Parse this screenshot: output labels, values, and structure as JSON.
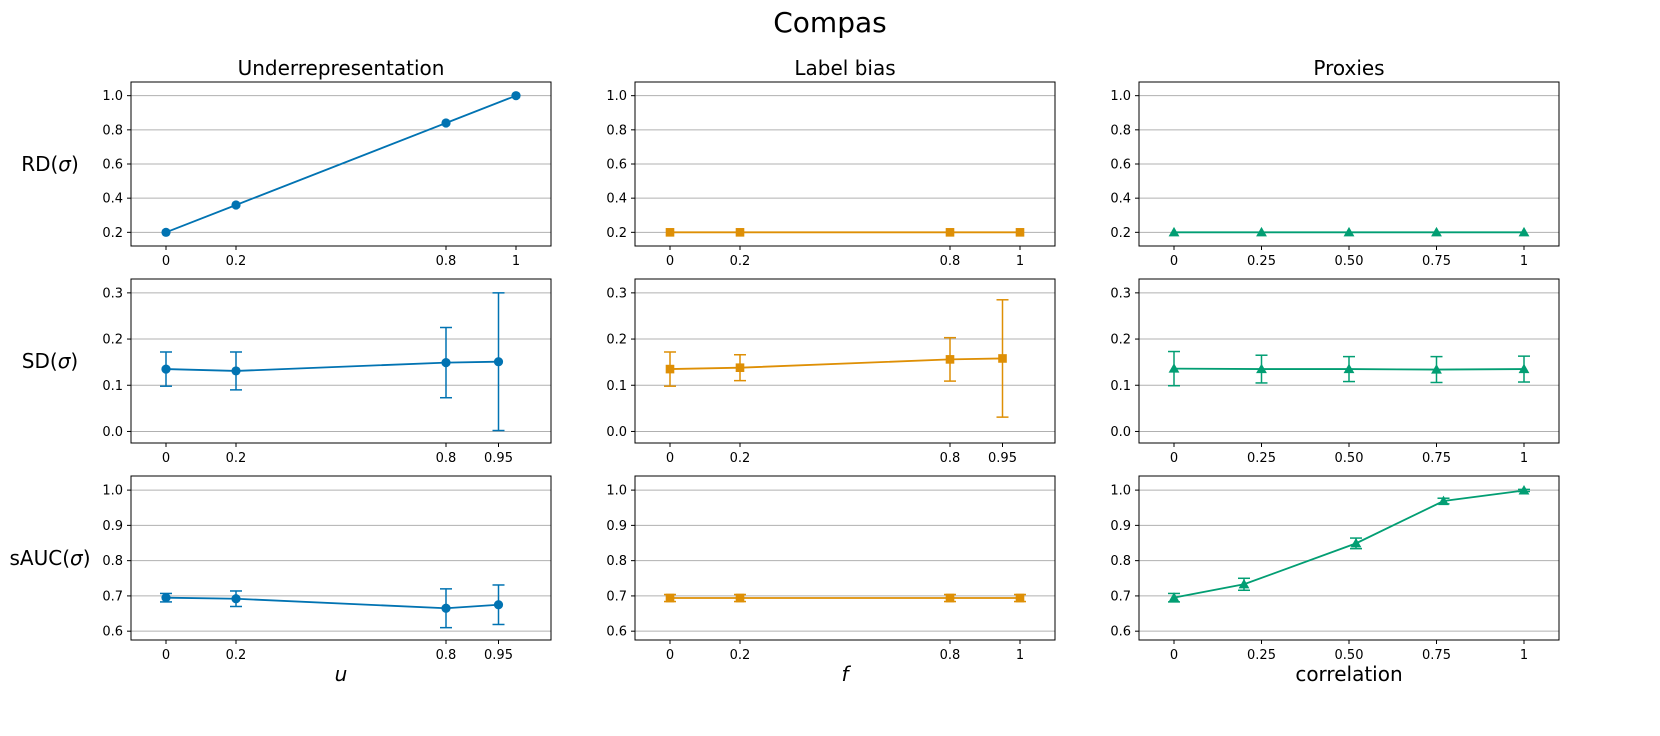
{
  "title": "Compas",
  "rows": [
    {
      "label_prefix": "RD(",
      "label_symbol": "σ",
      "label_suffix": ")"
    },
    {
      "label_prefix": "SD(",
      "label_symbol": "σ",
      "label_suffix": ")"
    },
    {
      "label_prefix": "sAUC(",
      "label_symbol": "σ",
      "label_suffix": ")"
    }
  ],
  "columns": [
    {
      "title": "Underrepresentation",
      "xlabel": "u",
      "xlabel_italic": true,
      "color": "#0173b2",
      "marker": "circle"
    },
    {
      "title": "Label bias",
      "xlabel": "f",
      "xlabel_italic": true,
      "color": "#de8f05",
      "marker": "square"
    },
    {
      "title": "Proxies",
      "xlabel": "correlation",
      "xlabel_italic": false,
      "color": "#029e73",
      "marker": "triangle"
    }
  ],
  "chart_data": [
    {
      "type": "line",
      "row": 0,
      "col": 0,
      "xlim": [
        -0.1,
        1.1
      ],
      "ylim": [
        0.12,
        1.08
      ],
      "grid": "y",
      "xticks": [
        0,
        0.2,
        0.8,
        1
      ],
      "xtick_labels": [
        "0",
        "0.2",
        "0.8",
        "1"
      ],
      "yticks": [
        0.2,
        0.4,
        0.6,
        0.8,
        1.0
      ],
      "ytick_labels": [
        "0.2",
        "0.4",
        "0.6",
        "0.8",
        "1.0"
      ],
      "series": [
        {
          "x": [
            0,
            0.2,
            0.8,
            1
          ],
          "y": [
            0.2,
            0.36,
            0.84,
            1.0
          ]
        }
      ]
    },
    {
      "type": "line",
      "row": 0,
      "col": 1,
      "xlim": [
        -0.1,
        1.1
      ],
      "ylim": [
        0.12,
        1.08
      ],
      "grid": "y",
      "xticks": [
        0,
        0.2,
        0.8,
        1
      ],
      "xtick_labels": [
        "0",
        "0.2",
        "0.8",
        "1"
      ],
      "yticks": [
        0.2,
        0.4,
        0.6,
        0.8,
        1.0
      ],
      "ytick_labels": [
        "0.2",
        "0.4",
        "0.6",
        "0.8",
        "1.0"
      ],
      "series": [
        {
          "x": [
            0,
            0.2,
            0.8,
            1
          ],
          "y": [
            0.2,
            0.2,
            0.2,
            0.2
          ]
        }
      ]
    },
    {
      "type": "line",
      "row": 0,
      "col": 2,
      "xlim": [
        -0.1,
        1.1
      ],
      "ylim": [
        0.12,
        1.08
      ],
      "grid": "y",
      "xticks": [
        0,
        0.25,
        0.5,
        0.75,
        1
      ],
      "xtick_labels": [
        "0",
        "0.25",
        "0.50",
        "0.75",
        "1"
      ],
      "yticks": [
        0.2,
        0.4,
        0.6,
        0.8,
        1.0
      ],
      "ytick_labels": [
        "0.2",
        "0.4",
        "0.6",
        "0.8",
        "1.0"
      ],
      "series": [
        {
          "x": [
            0,
            0.25,
            0.5,
            0.75,
            1
          ],
          "y": [
            0.2,
            0.2,
            0.2,
            0.2,
            0.2
          ]
        }
      ]
    },
    {
      "type": "line",
      "row": 1,
      "col": 0,
      "xlim": [
        -0.1,
        1.1
      ],
      "ylim": [
        -0.025,
        0.33
      ],
      "grid": "y",
      "xticks": [
        0,
        0.2,
        0.8,
        0.95
      ],
      "xtick_labels": [
        "0",
        "0.2",
        "0.8",
        "0.95"
      ],
      "yticks": [
        0.0,
        0.1,
        0.2,
        0.3
      ],
      "ytick_labels": [
        "0.0",
        "0.1",
        "0.2",
        "0.3"
      ],
      "series": [
        {
          "x": [
            0,
            0.2,
            0.8,
            0.95
          ],
          "y": [
            0.135,
            0.131,
            0.149,
            0.151
          ],
          "err": [
            0.037,
            0.041,
            0.076,
            0.149
          ]
        }
      ]
    },
    {
      "type": "line",
      "row": 1,
      "col": 1,
      "xlim": [
        -0.1,
        1.1
      ],
      "ylim": [
        -0.025,
        0.33
      ],
      "grid": "y",
      "xticks": [
        0,
        0.2,
        0.8,
        0.95
      ],
      "xtick_labels": [
        "0",
        "0.2",
        "0.8",
        "0.95"
      ],
      "yticks": [
        0.0,
        0.1,
        0.2,
        0.3
      ],
      "ytick_labels": [
        "0.0",
        "0.1",
        "0.2",
        "0.3"
      ],
      "series": [
        {
          "x": [
            0,
            0.2,
            0.8,
            0.95
          ],
          "y": [
            0.135,
            0.138,
            0.156,
            0.158
          ],
          "err": [
            0.037,
            0.028,
            0.047,
            0.127
          ]
        }
      ]
    },
    {
      "type": "line",
      "row": 1,
      "col": 2,
      "xlim": [
        -0.1,
        1.1
      ],
      "ylim": [
        -0.025,
        0.33
      ],
      "grid": "y",
      "xticks": [
        0,
        0.25,
        0.5,
        0.75,
        1
      ],
      "xtick_labels": [
        "0",
        "0.25",
        "0.50",
        "0.75",
        "1"
      ],
      "yticks": [
        0.0,
        0.1,
        0.2,
        0.3
      ],
      "ytick_labels": [
        "0.0",
        "0.1",
        "0.2",
        "0.3"
      ],
      "series": [
        {
          "x": [
            0,
            0.25,
            0.5,
            0.75,
            1
          ],
          "y": [
            0.136,
            0.135,
            0.135,
            0.134,
            0.135
          ],
          "err": [
            0.037,
            0.03,
            0.027,
            0.028,
            0.028
          ]
        }
      ]
    },
    {
      "type": "line",
      "row": 2,
      "col": 0,
      "xlim": [
        -0.1,
        1.1
      ],
      "ylim": [
        0.575,
        1.04
      ],
      "grid": "y",
      "xticks": [
        0,
        0.2,
        0.8,
        0.95
      ],
      "xtick_labels": [
        "0",
        "0.2",
        "0.8",
        "0.95"
      ],
      "yticks": [
        0.6,
        0.7,
        0.8,
        0.9,
        1.0
      ],
      "ytick_labels": [
        "0.6",
        "0.7",
        "0.8",
        "0.9",
        "1.0"
      ],
      "series": [
        {
          "x": [
            0,
            0.2,
            0.8,
            0.95
          ],
          "y": [
            0.695,
            0.692,
            0.665,
            0.675
          ],
          "err": [
            0.012,
            0.022,
            0.055,
            0.056
          ]
        }
      ]
    },
    {
      "type": "line",
      "row": 2,
      "col": 1,
      "xlim": [
        -0.1,
        1.1
      ],
      "ylim": [
        0.575,
        1.04
      ],
      "grid": "y",
      "xticks": [
        0,
        0.2,
        0.8,
        1
      ],
      "xtick_labels": [
        "0",
        "0.2",
        "0.8",
        "1"
      ],
      "yticks": [
        0.6,
        0.7,
        0.8,
        0.9,
        1.0
      ],
      "ytick_labels": [
        "0.6",
        "0.7",
        "0.8",
        "0.9",
        "1.0"
      ],
      "series": [
        {
          "x": [
            0,
            0.2,
            0.8,
            1
          ],
          "y": [
            0.694,
            0.694,
            0.694,
            0.694
          ],
          "err": [
            0.01,
            0.01,
            0.01,
            0.01
          ]
        }
      ]
    },
    {
      "type": "line",
      "row": 2,
      "col": 2,
      "xlim": [
        -0.1,
        1.1
      ],
      "ylim": [
        0.575,
        1.04
      ],
      "grid": "y",
      "xticks": [
        0,
        0.25,
        0.5,
        0.75,
        1
      ],
      "xtick_labels": [
        "0",
        "0.25",
        "0.50",
        "0.75",
        "1"
      ],
      "yticks": [
        0.6,
        0.7,
        0.8,
        0.9,
        1.0
      ],
      "ytick_labels": [
        "0.6",
        "0.7",
        "0.8",
        "0.9",
        "1.0"
      ],
      "series": [
        {
          "x": [
            0,
            0.2,
            0.52,
            0.77,
            1
          ],
          "y": [
            0.695,
            0.733,
            0.849,
            0.969,
            0.999
          ],
          "err": [
            0.012,
            0.017,
            0.015,
            0.008,
            0.003
          ]
        }
      ]
    }
  ]
}
